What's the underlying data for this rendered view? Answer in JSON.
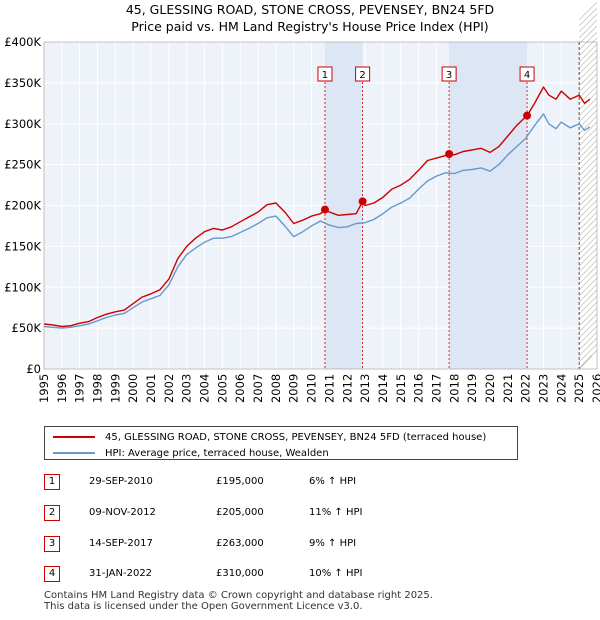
{
  "chart_data": {
    "type": "line",
    "title_line1": "45, GLESSING ROAD, STONE CROSS, PEVENSEY, BN24 5FD",
    "title_line2": "Price paid vs. HM Land Registry's House Price Index (HPI)",
    "x_range": [
      1995,
      2026
    ],
    "ylim": [
      0,
      400000
    ],
    "y_ticks": [
      {
        "value": 0,
        "label": "£0"
      },
      {
        "value": 50000,
        "label": "£50K"
      },
      {
        "value": 100000,
        "label": "£100K"
      },
      {
        "value": 150000,
        "label": "£150K"
      },
      {
        "value": 200000,
        "label": "£200K"
      },
      {
        "value": 250000,
        "label": "£250K"
      },
      {
        "value": 300000,
        "label": "£300K"
      },
      {
        "value": 350000,
        "label": "£350K"
      },
      {
        "value": 400000,
        "label": "£400K"
      }
    ],
    "x_ticks": [
      "1995",
      "1996",
      "1997",
      "1998",
      "1999",
      "2000",
      "2001",
      "2002",
      "2003",
      "2004",
      "2005",
      "2006",
      "2007",
      "2008",
      "2009",
      "2010",
      "2011",
      "2012",
      "2013",
      "2014",
      "2015",
      "2016",
      "2017",
      "2018",
      "2019",
      "2020",
      "2021",
      "2022",
      "2023",
      "2024",
      "2025",
      "2026"
    ],
    "series": [
      {
        "name": "45, GLESSING ROAD, STONE CROSS, PEVENSEY, BN24 5FD (terraced house)",
        "color": "#cc0000",
        "points": [
          [
            1995.0,
            55000
          ],
          [
            1995.5,
            54000
          ],
          [
            1996.0,
            52000
          ],
          [
            1996.5,
            53000
          ],
          [
            1997.0,
            56000
          ],
          [
            1997.5,
            58000
          ],
          [
            1998.0,
            63000
          ],
          [
            1998.5,
            67000
          ],
          [
            1999.0,
            70000
          ],
          [
            1999.5,
            72000
          ],
          [
            2000.0,
            80000
          ],
          [
            2000.5,
            88000
          ],
          [
            2001.0,
            92000
          ],
          [
            2001.5,
            97000
          ],
          [
            2002.0,
            110000
          ],
          [
            2002.5,
            135000
          ],
          [
            2003.0,
            150000
          ],
          [
            2003.5,
            160000
          ],
          [
            2004.0,
            168000
          ],
          [
            2004.5,
            172000
          ],
          [
            2005.0,
            170000
          ],
          [
            2005.5,
            174000
          ],
          [
            2006.0,
            180000
          ],
          [
            2006.5,
            186000
          ],
          [
            2007.0,
            192000
          ],
          [
            2007.5,
            201000
          ],
          [
            2008.0,
            203000
          ],
          [
            2008.5,
            192000
          ],
          [
            2009.0,
            178000
          ],
          [
            2009.5,
            182000
          ],
          [
            2010.0,
            187000
          ],
          [
            2010.5,
            190000
          ],
          [
            2010.75,
            195000
          ],
          [
            2011.0,
            192000
          ],
          [
            2011.5,
            188000
          ],
          [
            2012.0,
            189000
          ],
          [
            2012.5,
            190000
          ],
          [
            2012.86,
            205000
          ],
          [
            2013.0,
            200000
          ],
          [
            2013.5,
            203000
          ],
          [
            2014.0,
            210000
          ],
          [
            2014.5,
            220000
          ],
          [
            2015.0,
            225000
          ],
          [
            2015.5,
            232000
          ],
          [
            2016.0,
            243000
          ],
          [
            2016.5,
            255000
          ],
          [
            2017.0,
            258000
          ],
          [
            2017.5,
            261000
          ],
          [
            2017.71,
            263000
          ],
          [
            2018.0,
            262000
          ],
          [
            2018.5,
            266000
          ],
          [
            2019.0,
            268000
          ],
          [
            2019.5,
            270000
          ],
          [
            2020.0,
            265000
          ],
          [
            2020.5,
            272000
          ],
          [
            2021.0,
            285000
          ],
          [
            2021.5,
            298000
          ],
          [
            2022.08,
            310000
          ],
          [
            2022.5,
            325000
          ],
          [
            2023.0,
            345000
          ],
          [
            2023.3,
            335000
          ],
          [
            2023.7,
            330000
          ],
          [
            2024.0,
            340000
          ],
          [
            2024.5,
            330000
          ],
          [
            2025.0,
            335000
          ],
          [
            2025.3,
            325000
          ],
          [
            2025.6,
            330000
          ]
        ]
      },
      {
        "name": "HPI: Average price, terraced house, Wealden",
        "color": "#6699cc",
        "points": [
          [
            1995.0,
            52000
          ],
          [
            1995.5,
            51000
          ],
          [
            1996.0,
            50000
          ],
          [
            1996.5,
            51000
          ],
          [
            1997.0,
            53000
          ],
          [
            1997.5,
            55000
          ],
          [
            1998.0,
            59000
          ],
          [
            1998.5,
            63000
          ],
          [
            1999.0,
            66000
          ],
          [
            1999.5,
            68000
          ],
          [
            2000.0,
            75000
          ],
          [
            2000.5,
            82000
          ],
          [
            2001.0,
            86000
          ],
          [
            2001.5,
            90000
          ],
          [
            2002.0,
            103000
          ],
          [
            2002.5,
            125000
          ],
          [
            2003.0,
            140000
          ],
          [
            2003.5,
            148000
          ],
          [
            2004.0,
            155000
          ],
          [
            2004.5,
            160000
          ],
          [
            2005.0,
            160000
          ],
          [
            2005.5,
            162000
          ],
          [
            2006.0,
            167000
          ],
          [
            2006.5,
            172000
          ],
          [
            2007.0,
            178000
          ],
          [
            2007.5,
            185000
          ],
          [
            2008.0,
            187000
          ],
          [
            2008.5,
            175000
          ],
          [
            2009.0,
            162000
          ],
          [
            2009.5,
            168000
          ],
          [
            2010.0,
            175000
          ],
          [
            2010.5,
            181000
          ],
          [
            2011.0,
            176000
          ],
          [
            2011.5,
            173000
          ],
          [
            2012.0,
            174000
          ],
          [
            2012.5,
            178000
          ],
          [
            2013.0,
            179000
          ],
          [
            2013.5,
            183000
          ],
          [
            2014.0,
            190000
          ],
          [
            2014.5,
            198000
          ],
          [
            2015.0,
            203000
          ],
          [
            2015.5,
            209000
          ],
          [
            2016.0,
            220000
          ],
          [
            2016.5,
            230000
          ],
          [
            2017.0,
            236000
          ],
          [
            2017.5,
            240000
          ],
          [
            2018.0,
            239000
          ],
          [
            2018.5,
            243000
          ],
          [
            2019.0,
            244000
          ],
          [
            2019.5,
            246000
          ],
          [
            2020.0,
            242000
          ],
          [
            2020.5,
            250000
          ],
          [
            2021.0,
            262000
          ],
          [
            2021.5,
            272000
          ],
          [
            2022.0,
            282000
          ],
          [
            2022.5,
            298000
          ],
          [
            2023.0,
            312000
          ],
          [
            2023.3,
            300000
          ],
          [
            2023.7,
            294000
          ],
          [
            2024.0,
            302000
          ],
          [
            2024.5,
            295000
          ],
          [
            2025.0,
            300000
          ],
          [
            2025.3,
            292000
          ],
          [
            2025.6,
            296000
          ]
        ]
      }
    ],
    "sales": [
      {
        "label": "1",
        "x": 2010.75,
        "price": 195000
      },
      {
        "label": "2",
        "x": 2012.86,
        "price": 205000
      },
      {
        "label": "3",
        "x": 2017.71,
        "price": 263000
      },
      {
        "label": "4",
        "x": 2022.08,
        "price": 310000
      }
    ],
    "shaded_spans": [
      [
        2010.75,
        2012.86
      ],
      [
        2017.71,
        2022.08
      ]
    ],
    "forecast_start": 2025.0
  },
  "legend": {
    "property_label": "45, GLESSING ROAD, STONE CROSS, PEVENSEY, BN24 5FD (terraced house)",
    "hpi_label": "HPI: Average price, terraced house, Wealden",
    "property_color": "#cc0000",
    "hpi_color": "#6699cc"
  },
  "transactions": [
    {
      "num": "1",
      "date": "29-SEP-2010",
      "price": "£195,000",
      "hpi": "6% ↑ HPI"
    },
    {
      "num": "2",
      "date": "09-NOV-2012",
      "price": "£205,000",
      "hpi": "11% ↑ HPI"
    },
    {
      "num": "3",
      "date": "14-SEP-2017",
      "price": "£263,000",
      "hpi": "9% ↑ HPI"
    },
    {
      "num": "4",
      "date": "31-JAN-2022",
      "price": "£310,000",
      "hpi": "10% ↑ HPI"
    }
  ],
  "footer": {
    "line1": "Contains HM Land Registry data © Crown copyright and database right 2025.",
    "line2": "This data is licensed under the Open Government Licence v3.0."
  }
}
